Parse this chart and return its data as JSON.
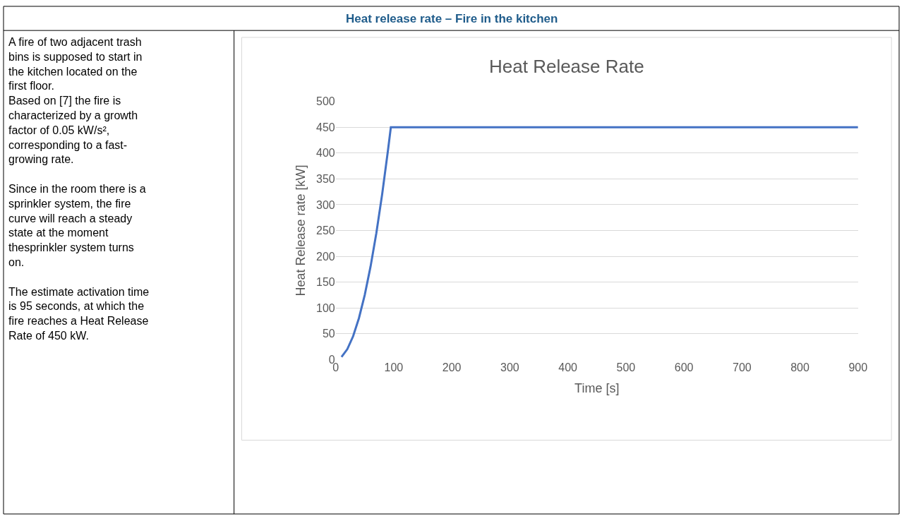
{
  "chart_data": {
    "type": "line",
    "title": "Heat release rate – Fire in the kitchen",
    "subtitle": "Heat Release Rate",
    "xlabel": "Time [s]",
    "ylabel": "Heat Release rate [kW]",
    "annotations": [
      "A fire of two adjacent trash bins is supposed to start in the kitchen located on the first floor.\nBased on [7] the fire is characterized by a growth factor of 0.05 kW/s², corresponding to a fast-growing rate.",
      "Since in the room there is a sprinkler system, the fire curve will reach a steady state at the moment thesprinkler system turns on.",
      "The estimate activation time is 95 seconds, at which the fire reaches a Heat Release Rate of 450 kW."
    ],
    "x": [
      10,
      20,
      30,
      40,
      50,
      60,
      70,
      80,
      90,
      95,
      100,
      900
    ],
    "series": [
      {
        "color": "#4472c4",
        "values": [
          5,
          20,
          45,
          80,
          125,
          180,
          245,
          320,
          405,
          450,
          450,
          450
        ]
      }
    ],
    "xlim": [
      0,
      900
    ],
    "xticks": [
      0,
      100,
      200,
      300,
      400,
      500,
      600,
      700,
      800,
      900
    ],
    "ylim": [
      0,
      500
    ],
    "yticks": [
      0,
      50,
      100,
      150,
      200,
      250,
      300,
      350,
      400,
      450,
      500
    ],
    "grid": "y",
    "marker": "none",
    "line_style": "solid"
  }
}
